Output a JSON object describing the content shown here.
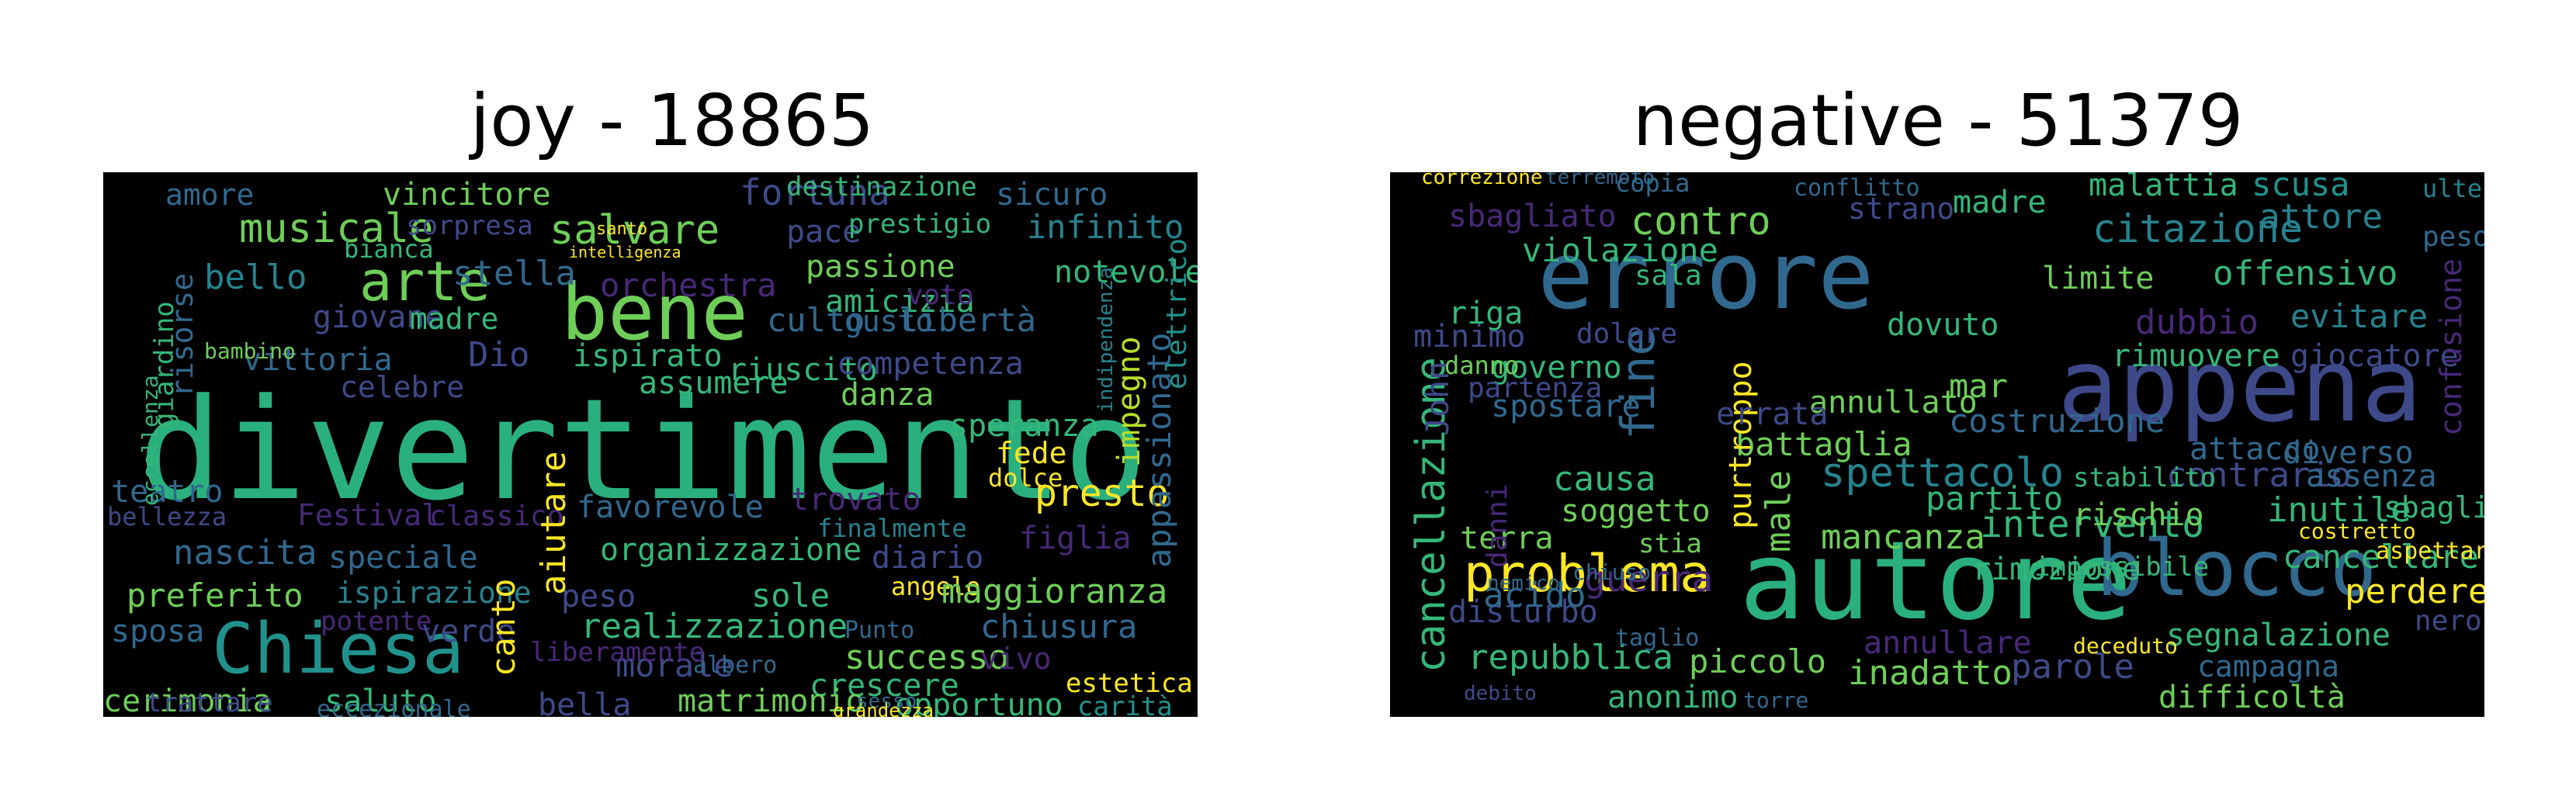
{
  "panels": [
    {
      "title": "joy - 18865",
      "words": [
        {
          "text": "divertimento",
          "color": "#2ab07f"
        },
        {
          "text": "bene",
          "color": "#6ece58"
        },
        {
          "text": "Chiesa",
          "color": "#21918c"
        },
        {
          "text": "arte",
          "color": "#6ece58"
        },
        {
          "text": "musicale",
          "color": "#6ece58"
        },
        {
          "text": "salvare",
          "color": "#6ece58"
        },
        {
          "text": "fortuna",
          "color": "#3e4989"
        },
        {
          "text": "vincitore",
          "color": "#6ece58"
        },
        {
          "text": "amore",
          "color": "#31688e"
        },
        {
          "text": "destinazione",
          "color": "#35b779"
        },
        {
          "text": "sicuro",
          "color": "#31688e"
        },
        {
          "text": "infinito",
          "color": "#26828e"
        },
        {
          "text": "pace",
          "color": "#3e4989"
        },
        {
          "text": "prestigio",
          "color": "#35b779"
        },
        {
          "text": "passione",
          "color": "#6ece58"
        },
        {
          "text": "notevole",
          "color": "#35b779"
        },
        {
          "text": "stella",
          "color": "#31688e"
        },
        {
          "text": "orchestra",
          "color": "#482878"
        },
        {
          "text": "amicizia",
          "color": "#35b779"
        },
        {
          "text": "voto",
          "color": "#482878"
        },
        {
          "text": "culto",
          "color": "#31688e"
        },
        {
          "text": "gusto",
          "color": "#31688e"
        },
        {
          "text": "libertà",
          "color": "#31688e"
        },
        {
          "text": "bello",
          "color": "#26828e"
        },
        {
          "text": "giovane",
          "color": "#3e4989"
        },
        {
          "text": "madre",
          "color": "#35b779"
        },
        {
          "text": "ispirato",
          "color": "#35b779"
        },
        {
          "text": "riuscito",
          "color": "#35b779"
        },
        {
          "text": "competenza",
          "color": "#3e4989"
        },
        {
          "text": "vittoria",
          "color": "#31688e"
        },
        {
          "text": "Dio",
          "color": "#3e4989"
        },
        {
          "text": "assumere",
          "color": "#35b779"
        },
        {
          "text": "danza",
          "color": "#6ece58"
        },
        {
          "text": "celebre",
          "color": "#3e4989"
        },
        {
          "text": "speranza",
          "color": "#35b779"
        },
        {
          "text": "fede",
          "color": "#fde725"
        },
        {
          "text": "dolce",
          "color": "#fde725"
        },
        {
          "text": "presto",
          "color": "#fde725"
        },
        {
          "text": "impegno",
          "color": "#b5de2b"
        },
        {
          "text": "indipendenza",
          "color": "#26828e"
        },
        {
          "text": "appassionato",
          "color": "#31688e"
        },
        {
          "text": "elettrico",
          "color": "#21918c"
        },
        {
          "text": "teatro",
          "color": "#31688e"
        },
        {
          "text": "bellezza",
          "color": "#3e4989"
        },
        {
          "text": "Festival",
          "color": "#482878"
        },
        {
          "text": "classico",
          "color": "#482878"
        },
        {
          "text": "favorevole",
          "color": "#31688e"
        },
        {
          "text": "trovato",
          "color": "#482878"
        },
        {
          "text": "finalmente",
          "color": "#26828e"
        },
        {
          "text": "figlia",
          "color": "#482878"
        },
        {
          "text": "nascita",
          "color": "#31688e"
        },
        {
          "text": "speciale",
          "color": "#31688e"
        },
        {
          "text": "organizzazione",
          "color": "#35b779"
        },
        {
          "text": "diario",
          "color": "#3e4989"
        },
        {
          "text": "preferito",
          "color": "#6ece58"
        },
        {
          "text": "ispirazione",
          "color": "#26828e"
        },
        {
          "text": "peso",
          "color": "#3e4989"
        },
        {
          "text": "sole",
          "color": "#35b779"
        },
        {
          "text": "angelo",
          "color": "#fde725"
        },
        {
          "text": "maggioranza",
          "color": "#6ece58"
        },
        {
          "text": "sposa",
          "color": "#31688e"
        },
        {
          "text": "potente",
          "color": "#482878"
        },
        {
          "text": "verde",
          "color": "#3e4989"
        },
        {
          "text": "realizzazione",
          "color": "#35b779"
        },
        {
          "text": "chiusura",
          "color": "#31688e"
        },
        {
          "text": "successo",
          "color": "#6ece58"
        },
        {
          "text": "vivo",
          "color": "#482878"
        },
        {
          "text": "morale",
          "color": "#3e4989"
        },
        {
          "text": "crescere",
          "color": "#35b779"
        },
        {
          "text": "estetica",
          "color": "#fde725"
        },
        {
          "text": "cerimonia",
          "color": "#6ece58"
        },
        {
          "text": "saluto",
          "color": "#35b779"
        },
        {
          "text": "canto",
          "color": "#fde725"
        },
        {
          "text": "aiutare",
          "color": "#fde725"
        },
        {
          "text": "bella",
          "color": "#3e4989"
        },
        {
          "text": "matrimonio",
          "color": "#6ece58"
        },
        {
          "text": "opportuno",
          "color": "#35b779"
        },
        {
          "text": "carità",
          "color": "#21918c"
        },
        {
          "text": "trattare",
          "color": "#3e4989"
        },
        {
          "text": "eccezionale",
          "color": "#31688e"
        },
        {
          "text": "albero",
          "color": "#31688e"
        },
        {
          "text": "sesso",
          "color": "#31688e"
        },
        {
          "text": "grandezza",
          "color": "#fde725"
        },
        {
          "text": "Punto",
          "color": "#31688e"
        },
        {
          "text": "liberamente",
          "color": "#482878"
        },
        {
          "text": "risorse",
          "color": "#31688e"
        },
        {
          "text": "giardino",
          "color": "#35b779"
        },
        {
          "text": "eccellenza",
          "color": "#35b779"
        },
        {
          "text": "bianca",
          "color": "#35b779"
        },
        {
          "text": "sorpresa",
          "color": "#3e4989"
        },
        {
          "text": "bambino",
          "color": "#6ece58"
        },
        {
          "text": "santo",
          "color": "#fde725"
        },
        {
          "text": "intelligenza",
          "color": "#fde725"
        }
      ]
    },
    {
      "title": "negative - 51379",
      "words": [
        {
          "text": "errore",
          "color": "#31688e"
        },
        {
          "text": "appena",
          "color": "#3e4989"
        },
        {
          "text": "autore",
          "color": "#2ab07f"
        },
        {
          "text": "blocco",
          "color": "#31688e"
        },
        {
          "text": "problema",
          "color": "#fde725"
        },
        {
          "text": "cancellazione",
          "color": "#35b779"
        },
        {
          "text": "contro",
          "color": "#6ece58"
        },
        {
          "text": "violazione",
          "color": "#35b779"
        },
        {
          "text": "sbagliato",
          "color": "#482878"
        },
        {
          "text": "citazione",
          "color": "#26828e"
        },
        {
          "text": "madre",
          "color": "#35b779"
        },
        {
          "text": "conflitto",
          "color": "#31688e"
        },
        {
          "text": "malattia",
          "color": "#35b779"
        },
        {
          "text": "scusa",
          "color": "#21918c"
        },
        {
          "text": "attore",
          "color": "#26828e"
        },
        {
          "text": "offensivo",
          "color": "#35b779"
        },
        {
          "text": "limite",
          "color": "#6ece58"
        },
        {
          "text": "evitare",
          "color": "#26828e"
        },
        {
          "text": "dubbio",
          "color": "#482878"
        },
        {
          "text": "rimuovere",
          "color": "#35b779"
        },
        {
          "text": "giocatore",
          "color": "#3e4989"
        },
        {
          "text": "confusione",
          "color": "#482878"
        },
        {
          "text": "governo",
          "color": "#35b779"
        },
        {
          "text": "minimo",
          "color": "#3e4989"
        },
        {
          "text": "fine",
          "color": "#31688e"
        },
        {
          "text": "dovuto",
          "color": "#35b779"
        },
        {
          "text": "spostare",
          "color": "#31688e"
        },
        {
          "text": "annullato",
          "color": "#6ece58"
        },
        {
          "text": "John",
          "color": "#3e4989"
        },
        {
          "text": "battaglia",
          "color": "#6ece58"
        },
        {
          "text": "spettacolo",
          "color": "#26828e"
        },
        {
          "text": "causa",
          "color": "#35b779"
        },
        {
          "text": "soggetto",
          "color": "#6ece58"
        },
        {
          "text": "purtroppo",
          "color": "#fde725"
        },
        {
          "text": "male",
          "color": "#6ece58"
        },
        {
          "text": "contrario",
          "color": "#3e4989"
        },
        {
          "text": "diverso",
          "color": "#31688e"
        },
        {
          "text": "intervento",
          "color": "#35b779"
        },
        {
          "text": "partito",
          "color": "#35b779"
        },
        {
          "text": "rischio",
          "color": "#6ece58"
        },
        {
          "text": "inutile",
          "color": "#35b779"
        },
        {
          "text": "sbaglio",
          "color": "#35b779"
        },
        {
          "text": "mancanza",
          "color": "#6ece58"
        },
        {
          "text": "terra",
          "color": "#6ece58"
        },
        {
          "text": "guerra",
          "color": "#482878"
        },
        {
          "text": "rimozione",
          "color": "#35b779"
        },
        {
          "text": "cancellare",
          "color": "#35b779"
        },
        {
          "text": "perdere",
          "color": "#fde725"
        },
        {
          "text": "repubblica",
          "color": "#35b779"
        },
        {
          "text": "piccolo",
          "color": "#6ece58"
        },
        {
          "text": "inadatto",
          "color": "#6ece58"
        },
        {
          "text": "parole",
          "color": "#3e4989"
        },
        {
          "text": "segnalazione",
          "color": "#35b779"
        },
        {
          "text": "campagna",
          "color": "#31688e"
        },
        {
          "text": "difficoltà",
          "color": "#6ece58"
        },
        {
          "text": "anonimo",
          "color": "#35b779"
        },
        {
          "text": "disturbo",
          "color": "#3e4989"
        },
        {
          "text": "acido",
          "color": "#31688e"
        },
        {
          "text": "annullare",
          "color": "#482878"
        },
        {
          "text": "assenza",
          "color": "#31688e"
        },
        {
          "text": "attacco",
          "color": "#31688e"
        },
        {
          "text": "costruzione",
          "color": "#31688e"
        },
        {
          "text": "errata",
          "color": "#3e4989"
        },
        {
          "text": "mar",
          "color": "#6ece58"
        },
        {
          "text": "dolore",
          "color": "#3e4989"
        },
        {
          "text": "partenza",
          "color": "#3e4989"
        },
        {
          "text": "danno",
          "color": "#6ece58"
        },
        {
          "text": "riga",
          "color": "#35b779"
        },
        {
          "text": "sala",
          "color": "#35b779"
        },
        {
          "text": "copia",
          "color": "#31688e"
        },
        {
          "text": "strano",
          "color": "#3e4989"
        },
        {
          "text": "ulteriore",
          "color": "#26828e"
        },
        {
          "text": "peso",
          "color": "#31688e"
        },
        {
          "text": "nero",
          "color": "#3e4989"
        },
        {
          "text": "stia",
          "color": "#6ece58"
        },
        {
          "text": "impossibile",
          "color": "#35b779"
        },
        {
          "text": "stabilito",
          "color": "#35b779"
        },
        {
          "text": "correzione",
          "color": "#fde725"
        },
        {
          "text": "terremoto",
          "color": "#31688e"
        },
        {
          "text": "danni",
          "color": "#482878"
        },
        {
          "text": "nemico",
          "color": "#31688e"
        },
        {
          "text": "chiuso",
          "color": "#31688e"
        },
        {
          "text": "taglio",
          "color": "#31688e"
        },
        {
          "text": "debito",
          "color": "#3e4989"
        },
        {
          "text": "torre",
          "color": "#31688e"
        },
        {
          "text": "aspettare",
          "color": "#fde725"
        },
        {
          "text": "costretto",
          "color": "#fde725"
        },
        {
          "text": "deceduto",
          "color": "#fde725"
        }
      ]
    }
  ]
}
